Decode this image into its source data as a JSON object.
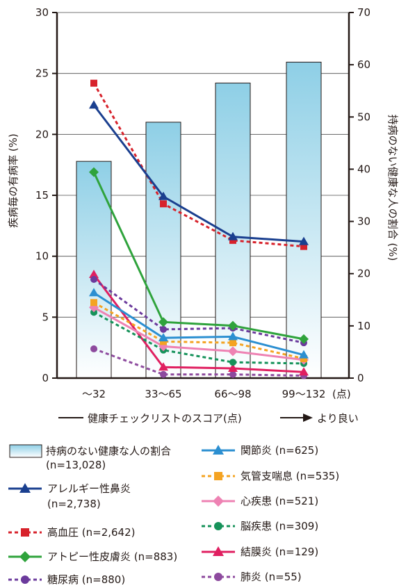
{
  "chart_data": {
    "type": "bar+line",
    "categories": [
      "～32",
      "33～65",
      "66～98",
      "99～132"
    ],
    "x_unit": "(点)",
    "xlabel": "健康チェックリストのスコア(点)",
    "x_arrow_label": "より良い",
    "ylabel_left": "疾病毎の有病率 (%)",
    "ylabel_right": "持病のない健康な人の割合 (%)",
    "ylim_left": [
      0,
      30
    ],
    "ylim_right": [
      0,
      70
    ],
    "yticks_left": [
      "0",
      "5",
      "10",
      "15",
      "20",
      "25",
      "30"
    ],
    "yticks_right": [
      "0",
      "10",
      "20",
      "30",
      "40",
      "50",
      "60",
      "70"
    ],
    "bars": {
      "name": "持病のない健康な人の割合",
      "n": "(n=13,028)",
      "axis": "right",
      "values": [
        41.5,
        49,
        56.5,
        60.5
      ],
      "color": "#8ecfe6"
    },
    "series": [
      {
        "name": "アレルギー性鼻炎",
        "n": "(n=2,738)",
        "values": [
          22.4,
          14.9,
          11.6,
          11.2
        ],
        "color": "#1a3f8f",
        "dash": false,
        "marker": "triangle"
      },
      {
        "name": "高血圧",
        "n": "(n=2,642)",
        "values": [
          24.2,
          14.3,
          11.3,
          10.8
        ],
        "color": "#d7222b",
        "dash": true,
        "marker": "square"
      },
      {
        "name": "アトピー性皮膚炎",
        "n": "(n=883)",
        "values": [
          16.9,
          4.6,
          4.3,
          3.2
        ],
        "color": "#2fa33c",
        "dash": false,
        "marker": "diamond"
      },
      {
        "name": "糖尿病",
        "n": "(n=880)",
        "values": [
          8.1,
          4.0,
          4.1,
          2.9
        ],
        "color": "#6b3a9c",
        "dash": true,
        "marker": "circle"
      },
      {
        "name": "関節炎",
        "n": "(n=625)",
        "values": [
          7.0,
          3.3,
          3.4,
          1.9
        ],
        "color": "#2b8fd1",
        "dash": false,
        "marker": "triangle"
      },
      {
        "name": "気管支喘息",
        "n": "(n=535)",
        "values": [
          6.2,
          3.0,
          2.9,
          1.6
        ],
        "color": "#f4a322",
        "dash": true,
        "marker": "square"
      },
      {
        "name": "心疾患",
        "n": "(n=521)",
        "values": [
          5.8,
          2.6,
          2.2,
          1.5
        ],
        "color": "#ee82b3",
        "dash": false,
        "marker": "diamond"
      },
      {
        "name": "脳疾患",
        "n": "(n=309)",
        "values": [
          5.4,
          2.3,
          1.3,
          1.2
        ],
        "color": "#16925a",
        "dash": true,
        "marker": "circle"
      },
      {
        "name": "結膜炎",
        "n": "(n=129)",
        "values": [
          8.5,
          0.9,
          0.8,
          0.5
        ],
        "color": "#e01f60",
        "dash": false,
        "marker": "triangle"
      },
      {
        "name": "肺炎",
        "n": "(n=55)",
        "values": [
          2.4,
          0.3,
          0.3,
          0.2
        ],
        "color": "#8d4a9e",
        "dash": true,
        "marker": "circle"
      }
    ],
    "grid": true
  }
}
